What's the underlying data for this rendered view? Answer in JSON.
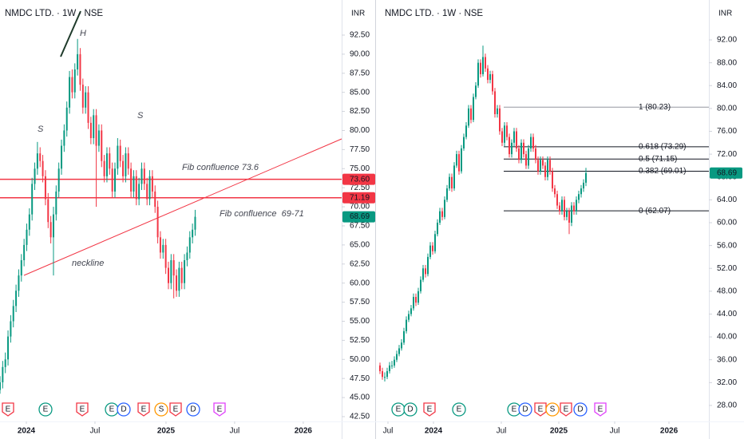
{
  "chart_data": [
    {
      "type": "candlestick",
      "title": "NMDC LTD. · 1W · NSE",
      "currency": "INR",
      "up_color": "#089981",
      "down_color": "#f23645",
      "ohlc": [
        [
          46,
          47.8,
          45.5,
          47
        ],
        [
          47,
          49.8,
          46.2,
          49
        ],
        [
          49,
          50.9,
          48.2,
          50
        ],
        [
          50,
          53.8,
          49.2,
          53
        ],
        [
          53,
          55.8,
          52.2,
          55
        ],
        [
          55,
          57.8,
          54.2,
          57
        ],
        [
          57,
          59.8,
          56.2,
          59
        ],
        [
          59,
          61.8,
          58.2,
          61
        ],
        [
          61,
          63.8,
          60.2,
          63
        ],
        [
          63,
          65.8,
          62.2,
          65
        ],
        [
          65,
          67.8,
          64.2,
          67
        ],
        [
          67,
          69.8,
          66.2,
          69
        ],
        [
          69,
          73.8,
          68.2,
          73
        ],
        [
          73,
          75.8,
          72.2,
          75
        ],
        [
          75,
          78.5,
          74.2,
          77
        ],
        [
          77,
          77.8,
          75.2,
          76
        ],
        [
          76,
          76.8,
          73.2,
          74
        ],
        [
          74,
          74.8,
          70.2,
          71
        ],
        [
          71,
          71.8,
          67.2,
          68
        ],
        [
          68,
          68.8,
          65.2,
          66
        ],
        [
          66,
          70,
          61,
          69
        ],
        [
          69,
          72.8,
          68.2,
          72
        ],
        [
          72,
          75.8,
          71.2,
          75
        ],
        [
          75,
          78.8,
          74.2,
          78
        ],
        [
          78,
          80.8,
          77.2,
          80
        ],
        [
          80,
          83.8,
          79.2,
          83
        ],
        [
          83,
          87.8,
          82.2,
          87
        ],
        [
          87,
          88,
          84.2,
          85
        ],
        [
          85,
          88.8,
          84.2,
          88
        ],
        [
          88,
          92,
          87.2,
          90
        ],
        [
          90,
          90.8,
          85.2,
          86
        ],
        [
          86,
          86.8,
          82.2,
          83
        ],
        [
          83,
          85.8,
          82.2,
          85
        ],
        [
          85,
          85.8,
          80.2,
          81
        ],
        [
          81,
          81.8,
          78.2,
          79
        ],
        [
          79,
          82.8,
          78.2,
          82
        ],
        [
          82,
          82.8,
          70,
          78
        ],
        [
          78,
          80.8,
          77.2,
          80
        ],
        [
          80,
          80.8,
          75.2,
          76
        ],
        [
          76,
          76.8,
          73.2,
          74
        ],
        [
          74,
          77.8,
          73.2,
          77
        ],
        [
          77,
          77.8,
          74.2,
          75
        ],
        [
          75,
          75.8,
          71.2,
          72
        ],
        [
          72,
          75.8,
          71.2,
          75
        ],
        [
          75,
          79,
          74.2,
          78
        ],
        [
          78,
          78.8,
          75.2,
          76
        ],
        [
          76,
          76.8,
          73.2,
          74
        ],
        [
          74,
          77.8,
          73.2,
          77
        ],
        [
          77,
          77.8,
          74.2,
          75
        ],
        [
          75,
          75.8,
          71.2,
          72
        ],
        [
          72,
          74.8,
          71.2,
          74
        ],
        [
          74,
          74.8,
          70.2,
          71
        ],
        [
          71,
          73.8,
          70.2,
          73
        ],
        [
          73,
          75.8,
          72.2,
          75
        ],
        [
          75,
          75.8,
          72.2,
          73
        ],
        [
          73,
          73.8,
          70.2,
          71
        ],
        [
          71,
          74.8,
          70.2,
          74
        ],
        [
          74,
          74.8,
          71.2,
          72
        ],
        [
          72,
          72.8,
          69.2,
          70
        ],
        [
          70,
          70.8,
          65.2,
          66
        ],
        [
          66,
          66.8,
          63.2,
          64
        ],
        [
          64,
          65.8,
          63.2,
          65
        ],
        [
          65,
          65.8,
          61.2,
          62
        ],
        [
          62,
          62.8,
          59.2,
          60
        ],
        [
          60,
          63.8,
          59.2,
          63
        ],
        [
          63,
          63.8,
          58,
          61
        ],
        [
          61,
          61.8,
          58.2,
          59
        ],
        [
          59,
          62.8,
          58.2,
          62
        ],
        [
          62,
          62.8,
          59.2,
          60
        ],
        [
          60,
          63.8,
          59.2,
          63
        ],
        [
          63,
          64.8,
          62.2,
          64
        ],
        [
          64,
          66.8,
          63.2,
          66
        ],
        [
          66,
          67.8,
          65.2,
          67
        ],
        [
          67,
          69.6,
          66.2,
          68.69
        ]
      ],
      "xlim": [
        0,
        127.8
      ],
      "xticks": [
        {
          "value": 9.85,
          "label": "2024"
        },
        {
          "value": 35.52,
          "label": "Jul"
        },
        {
          "value": 62.09,
          "label": "2025"
        },
        {
          "value": 87.76,
          "label": "Jul"
        },
        {
          "value": 113.43,
          "label": "2026"
        }
      ],
      "ylim": [
        41.87,
        97.1
      ],
      "yticks": [
        {
          "value": 42.5,
          "label": "42.50"
        },
        {
          "value": 45,
          "label": "45.00"
        },
        {
          "value": 47.5,
          "label": "47.50"
        },
        {
          "value": 50,
          "label": "50.00"
        },
        {
          "value": 52.5,
          "label": "52.50"
        },
        {
          "value": 55,
          "label": "55.00"
        },
        {
          "value": 57.5,
          "label": "57.50"
        },
        {
          "value": 60,
          "label": "60.00"
        },
        {
          "value": 62.5,
          "label": "62.50"
        },
        {
          "value": 65,
          "label": "65.00"
        },
        {
          "value": 67.5,
          "label": "67.50"
        },
        {
          "value": 70,
          "label": "70.00"
        },
        {
          "value": 72.5,
          "label": "72.50"
        },
        {
          "value": 75,
          "label": "75.00"
        },
        {
          "value": 77.5,
          "label": "77.50"
        },
        {
          "value": 80,
          "label": "80.00"
        },
        {
          "value": 82.5,
          "label": "82.50"
        },
        {
          "value": 85,
          "label": "85.00"
        },
        {
          "value": 87.5,
          "label": "87.50"
        },
        {
          "value": 90,
          "label": "90.00"
        },
        {
          "value": 92.5,
          "label": "92.50"
        }
      ],
      "hlines": [
        {
          "value": 73.6,
          "label": "73.60",
          "color": "#f23645"
        },
        {
          "value": 71.19,
          "label": "71.19",
          "color": "#f23645"
        }
      ],
      "last_price": 68.69,
      "annotations": [
        "H",
        "S",
        "S",
        "Fib confluence 73.6",
        "Fib confluence  69-71",
        "neckline"
      ],
      "events": [
        "E",
        "E",
        "E",
        "E",
        "D",
        "E",
        "S",
        "E",
        "D",
        "E"
      ]
    },
    {
      "type": "candlestick",
      "title": "NMDC LTD. · 1W · NSE",
      "currency": "INR",
      "up_color": "#089981",
      "down_color": "#f23645",
      "ohlc": [
        [
          35,
          35.5,
          33.5,
          34
        ],
        [
          34,
          34.6,
          32.5,
          33
        ],
        [
          33,
          33.8,
          32.2,
          33
        ],
        [
          33,
          34.6,
          32.6,
          34
        ],
        [
          34,
          35.6,
          33.6,
          35
        ],
        [
          35,
          35.8,
          34.4,
          35
        ],
        [
          35,
          36.6,
          34.6,
          36
        ],
        [
          36,
          37.6,
          35.6,
          37
        ],
        [
          37,
          38.6,
          36.6,
          38
        ],
        [
          38,
          39.6,
          37.6,
          39
        ],
        [
          39,
          41.6,
          38.6,
          41
        ],
        [
          41,
          43.6,
          40.6,
          43
        ],
        [
          43,
          44.6,
          42.6,
          44
        ],
        [
          44,
          45.6,
          43.6,
          45
        ],
        [
          45,
          47.6,
          44.6,
          47
        ],
        [
          47,
          47.6,
          45.4,
          46
        ],
        [
          46,
          48.6,
          45.6,
          48
        ],
        [
          48,
          50.6,
          47.6,
          50
        ],
        [
          50,
          52.6,
          49.6,
          52
        ],
        [
          52,
          52.6,
          50.4,
          51
        ],
        [
          51,
          54.6,
          50.6,
          54
        ],
        [
          54,
          56.6,
          53.6,
          56
        ],
        [
          56,
          56.6,
          54.4,
          55
        ],
        [
          55,
          58.6,
          54.6,
          58
        ],
        [
          58,
          60.6,
          57.6,
          60
        ],
        [
          60,
          62.6,
          59.6,
          62
        ],
        [
          62,
          62.6,
          60.4,
          61
        ],
        [
          61,
          64.6,
          60.6,
          64
        ],
        [
          64,
          66.6,
          63.6,
          66
        ],
        [
          66,
          68.6,
          65.6,
          68
        ],
        [
          68,
          68.6,
          65.4,
          66
        ],
        [
          66,
          70.6,
          65.6,
          70
        ],
        [
          70,
          72.6,
          69.6,
          72
        ],
        [
          72,
          72.6,
          68.4,
          69
        ],
        [
          69,
          73.6,
          68.6,
          73
        ],
        [
          73,
          75.6,
          72.6,
          75
        ],
        [
          75,
          77.6,
          74.6,
          77
        ],
        [
          77,
          80.6,
          76.6,
          80
        ],
        [
          80,
          80.6,
          77.4,
          78
        ],
        [
          78,
          82.6,
          77.6,
          82
        ],
        [
          82,
          84.6,
          81.6,
          84
        ],
        [
          84,
          88.6,
          83.6,
          88
        ],
        [
          88,
          88.6,
          85.4,
          86
        ],
        [
          86,
          91,
          85.6,
          89
        ],
        [
          89,
          89.6,
          86.4,
          87
        ],
        [
          87,
          87.6,
          84.4,
          85
        ],
        [
          85,
          86.6,
          84.4,
          86
        ],
        [
          86,
          86.6,
          82.4,
          83
        ],
        [
          83,
          83.6,
          78.4,
          79
        ],
        [
          79,
          80.6,
          78.4,
          80
        ],
        [
          80,
          80.6,
          75.4,
          76
        ],
        [
          76,
          76.6,
          73.4,
          74
        ],
        [
          74,
          77.6,
          73.4,
          77
        ],
        [
          77,
          77.6,
          74.4,
          75
        ],
        [
          75,
          75.6,
          71.4,
          72
        ],
        [
          72,
          74.6,
          71.4,
          74
        ],
        [
          74,
          76.6,
          73.4,
          76
        ],
        [
          76,
          76.6,
          72.4,
          73
        ],
        [
          73,
          73.6,
          70.4,
          71
        ],
        [
          71,
          74.6,
          70.4,
          74
        ],
        [
          74,
          74.6,
          71.4,
          72
        ],
        [
          72,
          72.6,
          69.4,
          70
        ],
        [
          70,
          73.6,
          69.4,
          73
        ],
        [
          73,
          75.6,
          72.4,
          75
        ],
        [
          75,
          75.6,
          72.4,
          73
        ],
        [
          73,
          73.6,
          70.4,
          71
        ],
        [
          71,
          71.6,
          68.4,
          69
        ],
        [
          69,
          71.6,
          68.4,
          71
        ],
        [
          71,
          71.6,
          69.4,
          70
        ],
        [
          70,
          70.6,
          67.4,
          68
        ],
        [
          68,
          71.6,
          67.4,
          71
        ],
        [
          71,
          71.6,
          68.4,
          69
        ],
        [
          69,
          69.6,
          65.4,
          66
        ],
        [
          66,
          66.6,
          64.4,
          65
        ],
        [
          65,
          65.6,
          62.4,
          63
        ],
        [
          63,
          63.6,
          61.4,
          62
        ],
        [
          62,
          64.6,
          61.4,
          64
        ],
        [
          64,
          64.6,
          60.4,
          61
        ],
        [
          61,
          62.6,
          60.4,
          62
        ],
        [
          62,
          62.6,
          58,
          60
        ],
        [
          60,
          63.6,
          59.4,
          63
        ],
        [
          63,
          63.6,
          61.4,
          62
        ],
        [
          62,
          64.6,
          61.4,
          64
        ],
        [
          64,
          65.6,
          63.4,
          65
        ],
        [
          65,
          66.6,
          64.4,
          66
        ],
        [
          66,
          67.6,
          65.4,
          67
        ],
        [
          67,
          69.6,
          66.4,
          68.69
        ]
      ],
      "xlim": [
        -2,
        137.33
      ],
      "xticks": [
        {
          "value": 3.33,
          "label": "Jul"
        },
        {
          "value": 22.33,
          "label": "2024"
        },
        {
          "value": 50.67,
          "label": "Jul"
        },
        {
          "value": 74.67,
          "label": "2025"
        },
        {
          "value": 98,
          "label": "Jul"
        },
        {
          "value": 120.67,
          "label": "2026"
        }
      ],
      "ylim": [
        25.2,
        98.99
      ],
      "yticks": [
        {
          "value": 28,
          "label": "28.00"
        },
        {
          "value": 32,
          "label": "32.00"
        },
        {
          "value": 36,
          "label": "36.00"
        },
        {
          "value": 40,
          "label": "40.00"
        },
        {
          "value": 44,
          "label": "44.00"
        },
        {
          "value": 48,
          "label": "48.00"
        },
        {
          "value": 52,
          "label": "52.00"
        },
        {
          "value": 56,
          "label": "56.00"
        },
        {
          "value": 60,
          "label": "60.00"
        },
        {
          "value": 64,
          "label": "64.00"
        },
        {
          "value": 68,
          "label": "68.00"
        },
        {
          "value": 72,
          "label": "72.00"
        },
        {
          "value": 76,
          "label": "76.00"
        },
        {
          "value": 80,
          "label": "80.00"
        },
        {
          "value": 84,
          "label": "84.00"
        },
        {
          "value": 88,
          "label": "88.00"
        },
        {
          "value": 92,
          "label": "92.00"
        }
      ],
      "fib_levels": [
        {
          "value": 80.23,
          "label": "1 (80.23)",
          "color": "#9598a1"
        },
        {
          "value": 73.29,
          "label": "0.618 (73.29)",
          "color": "#131722"
        },
        {
          "value": 71.15,
          "label": "0.5 (71.15)",
          "color": "#131722"
        },
        {
          "value": 69.01,
          "label": "0.382 (69.01)",
          "color": "#131722"
        },
        {
          "value": 62.07,
          "label": "0 (62.07)",
          "color": "#131722"
        }
      ],
      "last_price": 68.69,
      "events": [
        "E",
        "D",
        "E",
        "E",
        "E",
        "D",
        "E",
        "S",
        "E",
        "D",
        "E"
      ]
    }
  ]
}
